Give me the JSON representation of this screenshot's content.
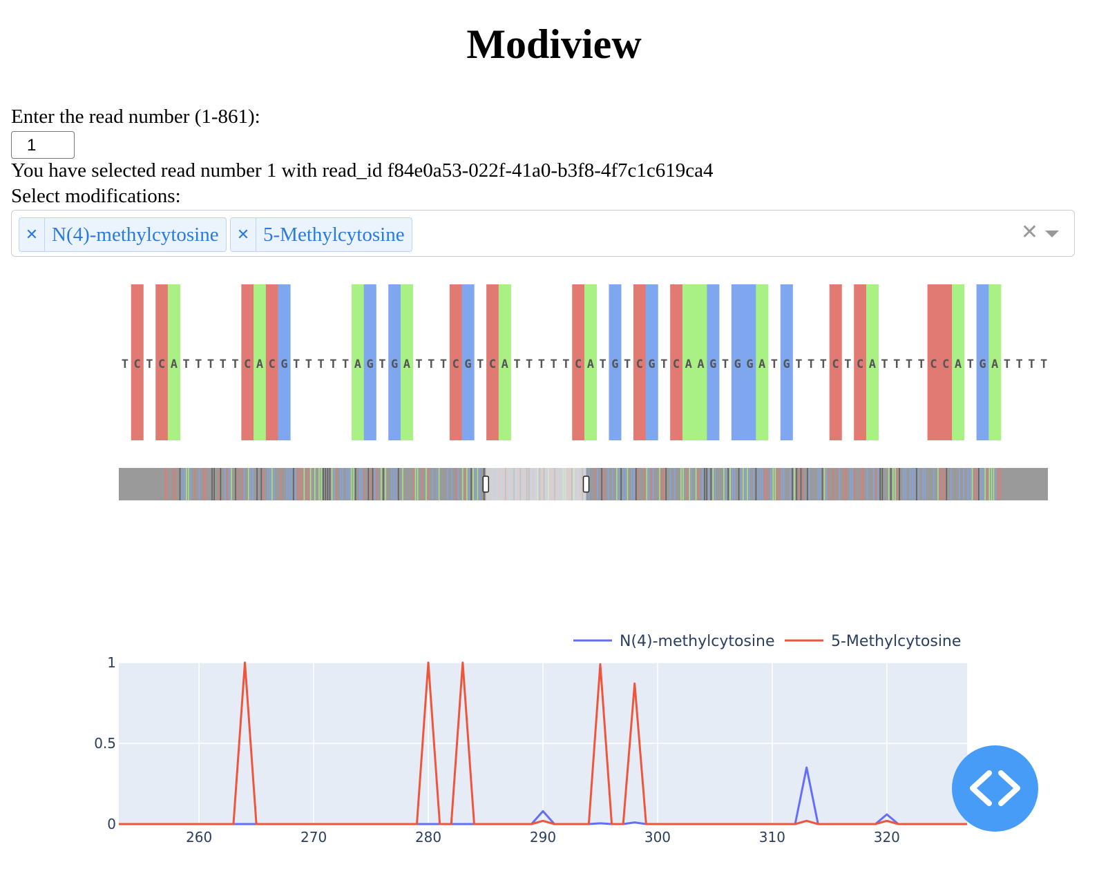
{
  "app": {
    "title": "Modiview"
  },
  "read_input": {
    "label": "Enter the read number (1-861):",
    "value": "1"
  },
  "read_info": "You have selected read number 1 with read_id f84e0a53-022f-41a0-b3f8-4f7c1c619ca4",
  "modifications": {
    "label": "Select modifications:",
    "selected": [
      {
        "label": "N(4)-methylcytosine",
        "remove_icon": "close-icon"
      },
      {
        "label": "5-Methylcytosine",
        "remove_icon": "close-icon"
      }
    ],
    "clear_icon": "close-icon",
    "toggle_icon": "chevron-down-icon"
  },
  "sequence_view": {
    "sequence": "TCTCATTTTTCACGTTTTTAGTGATTTCGTCATTTTTCATGTCGTCAAGTGGATGTTTCTCATTTTCCATGATTTT",
    "colors": {
      "C": "#e17a72",
      "A": "#a9f184",
      "G": "#7fa7ef",
      "T": null
    },
    "overview_selection": {
      "start_fraction": 0.395,
      "end_fraction": 0.503
    }
  },
  "chart_data": {
    "type": "line",
    "x": [
      253,
      254,
      255,
      256,
      257,
      258,
      259,
      260,
      261,
      262,
      263,
      264,
      265,
      266,
      267,
      268,
      269,
      270,
      271,
      272,
      273,
      274,
      275,
      276,
      277,
      278,
      279,
      280,
      281,
      282,
      283,
      284,
      285,
      286,
      287,
      288,
      289,
      290,
      291,
      292,
      293,
      294,
      295,
      296,
      297,
      298,
      299,
      300,
      301,
      302,
      303,
      304,
      305,
      306,
      307,
      308,
      309,
      310,
      311,
      312,
      313,
      314,
      315,
      316,
      317,
      318,
      319,
      320,
      321,
      322,
      323,
      324,
      325,
      326,
      327
    ],
    "series": [
      {
        "name": "N(4)-methylcytosine",
        "color": "#636efa",
        "values": [
          0,
          0,
          0,
          0,
          0,
          0,
          0,
          0,
          0,
          0,
          0,
          0,
          0,
          0,
          0,
          0,
          0,
          0,
          0,
          0,
          0,
          0,
          0,
          0,
          0,
          0,
          0,
          0,
          0,
          0,
          0,
          0,
          0,
          0,
          0,
          0,
          0,
          0.08,
          0,
          0,
          0,
          0,
          0.005,
          0,
          0,
          0.01,
          0,
          0,
          0,
          0,
          0,
          0,
          0,
          0,
          0,
          0,
          0,
          0,
          0,
          0,
          0.35,
          0,
          0,
          0,
          0,
          0,
          0,
          0.06,
          0,
          0,
          0,
          0,
          0,
          0,
          0
        ]
      },
      {
        "name": "5-Methylcytosine",
        "color": "#ef553b",
        "values": [
          0,
          0,
          0,
          0,
          0,
          0,
          0,
          0,
          0,
          0,
          0,
          1,
          0,
          0,
          0,
          0,
          0,
          0,
          0,
          0,
          0,
          0,
          0,
          0,
          0,
          0,
          0,
          1,
          0,
          0,
          1,
          0,
          0,
          0,
          0,
          0,
          0,
          0.02,
          0,
          0,
          0,
          0,
          0.99,
          0,
          0,
          0.87,
          0,
          0,
          0,
          0,
          0,
          0,
          0,
          0,
          0,
          0,
          0,
          0,
          0,
          0,
          0.02,
          0,
          0,
          0,
          0,
          0,
          0,
          0.02,
          0,
          0,
          0,
          0,
          0,
          0,
          0
        ]
      }
    ],
    "xticks": [
      260,
      270,
      280,
      290,
      300,
      310,
      320
    ],
    "yticks": [
      "0",
      "0.5",
      "1"
    ],
    "xlim": [
      253,
      327
    ],
    "ylim": [
      0,
      1
    ],
    "legend_position": "top-right",
    "grid": true
  },
  "fab": {
    "icon": "code-brackets-icon"
  }
}
